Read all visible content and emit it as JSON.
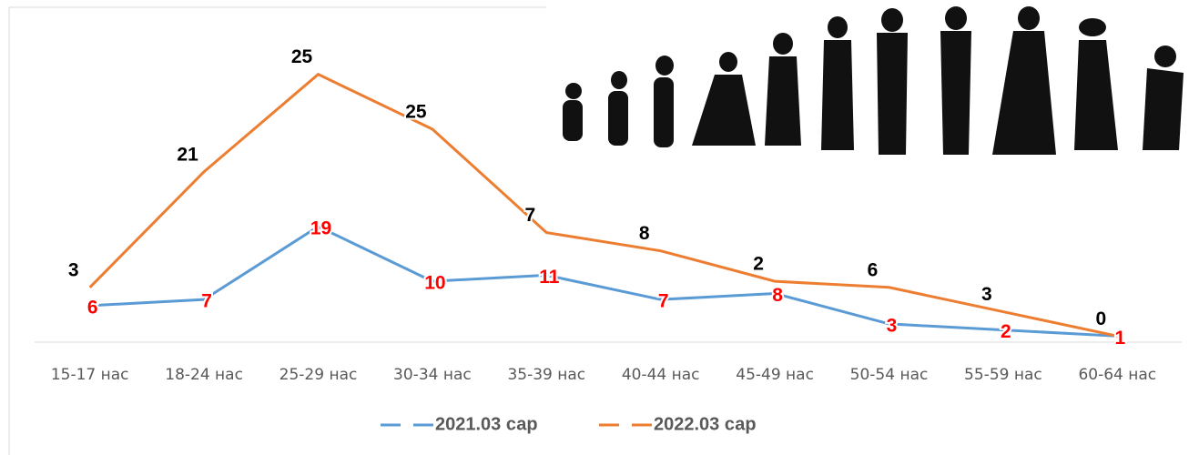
{
  "chart_data": {
    "type": "line",
    "stacked": true,
    "categories": [
      "15-17 нас",
      "18-24 нас",
      "25-29 нас",
      "30-34 нас",
      "35-39 нас",
      "40-44 нас",
      "45-49 нас",
      "50-54 нас",
      "55-59 нас",
      "60-64 нас"
    ],
    "series": [
      {
        "name": "2021.03 сар",
        "color": "#5b9bd5",
        "label_color": "#ff0000",
        "values": [
          6,
          7,
          19,
          10,
          11,
          7,
          8,
          3,
          2,
          1
        ]
      },
      {
        "name": "2022.03 сар",
        "color": "#ed7d31",
        "label_color": "#000000",
        "values": [
          3,
          21,
          25,
          25,
          7,
          8,
          2,
          6,
          3,
          0
        ]
      }
    ],
    "ylim": [
      0,
      45
    ],
    "legend": "bottom"
  }
}
